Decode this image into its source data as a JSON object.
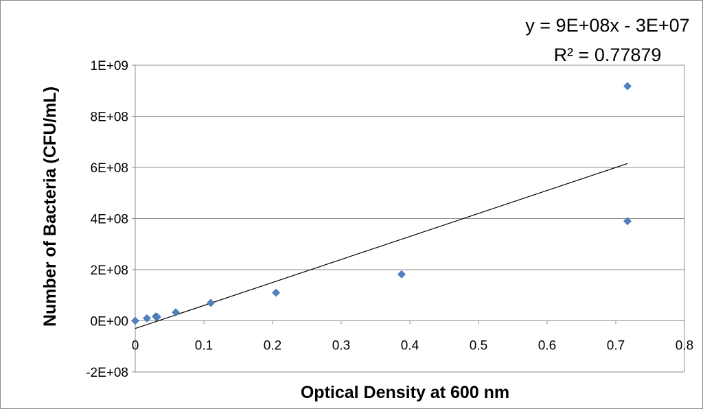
{
  "chart_data": {
    "type": "scatter",
    "title": "",
    "xlabel": "Optical Density at 600 nm",
    "ylabel": "Number of Bacteria (CFU/mL)",
    "xlim": [
      0,
      0.8
    ],
    "ylim": [
      -200000000,
      1000000000
    ],
    "x_ticks": [
      0,
      0.1,
      0.2,
      0.3,
      0.4,
      0.5,
      0.6,
      0.7,
      0.8
    ],
    "x_tick_labels": [
      "0",
      "0.1",
      "0.2",
      "0.3",
      "0.4",
      "0.5",
      "0.6",
      "0.7",
      "0.8"
    ],
    "y_ticks": [
      -200000000,
      0,
      200000000,
      400000000,
      600000000,
      800000000,
      1000000000
    ],
    "y_tick_labels": [
      "-2E+08",
      "0E+00",
      "2E+08",
      "4E+08",
      "6E+08",
      "8E+08",
      "1E+09"
    ],
    "grid": {
      "horizontal": true,
      "vertical": false
    },
    "marker_color": "#4f81bd",
    "trendline_color": "#000000",
    "points": [
      {
        "x": 0.0,
        "y": 0
      },
      {
        "x": 0.017,
        "y": 10000000
      },
      {
        "x": 0.03,
        "y": 17000000
      },
      {
        "x": 0.032,
        "y": 15000000
      },
      {
        "x": 0.059,
        "y": 33000000
      },
      {
        "x": 0.11,
        "y": 70000000
      },
      {
        "x": 0.205,
        "y": 110000000
      },
      {
        "x": 0.388,
        "y": 182000000
      },
      {
        "x": 0.717,
        "y": 390000000
      },
      {
        "x": 0.717,
        "y": 918000000
      }
    ],
    "trendline": {
      "type": "linear",
      "x_range": [
        0,
        0.717
      ],
      "slope": 900000000,
      "intercept": -30000000,
      "equation_text": "y = 9E+08x - 3E+07",
      "r2_text": "R² = 0.77879"
    }
  }
}
